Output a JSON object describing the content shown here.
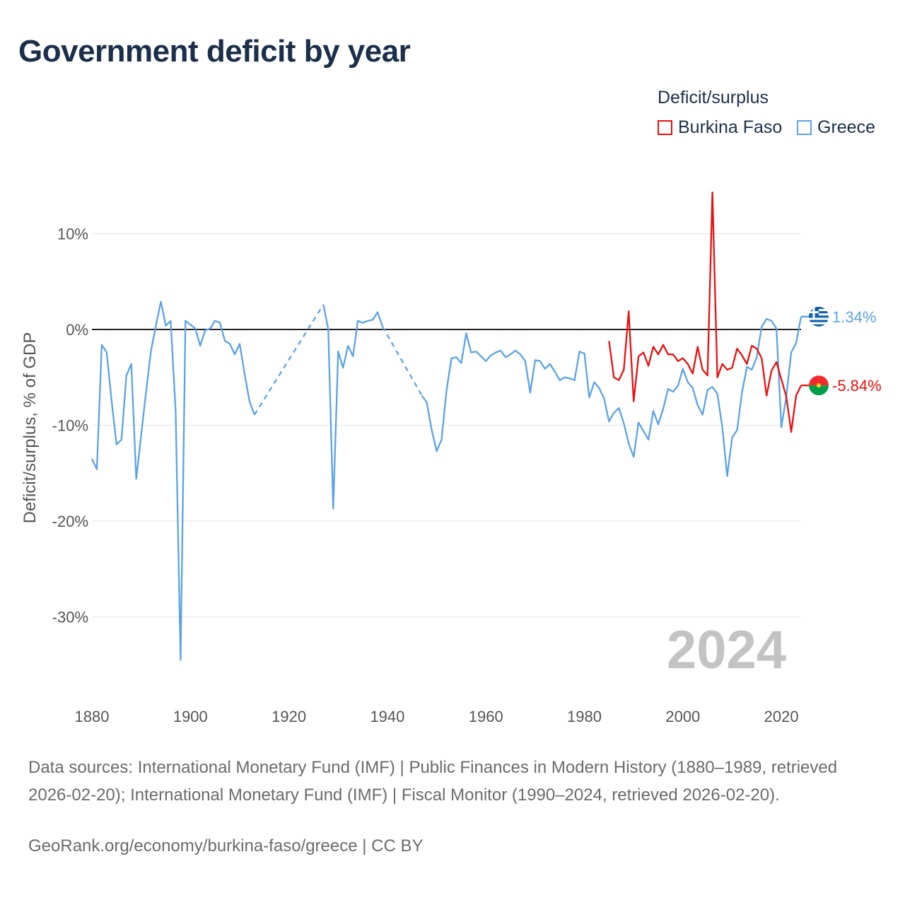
{
  "title": "Government deficit by year",
  "legend": {
    "title": "Deficit/surplus",
    "items": [
      {
        "label": "Burkina Faso",
        "color": "#e8100f"
      },
      {
        "label": "Greece",
        "color": "#5aa3e5"
      }
    ]
  },
  "chart_data": {
    "type": "line",
    "title": "Government deficit by year",
    "xlabel": "",
    "ylabel": "Deficit/surplus, % of GDP",
    "xlim": [
      1880,
      2024
    ],
    "ylim": [
      -37,
      15
    ],
    "xticks": [
      1880,
      1900,
      1920,
      1940,
      1960,
      1980,
      2000,
      2020
    ],
    "yticks": [
      10,
      0,
      -10,
      -20,
      -30
    ],
    "ytick_labels": [
      "10%",
      "0%",
      "-10%",
      "-20%",
      "-30%"
    ],
    "zero_line": true,
    "watermark_year": "2024",
    "series": [
      {
        "name": "Greece",
        "color": "#5aa3e5",
        "end_label": "1.34%",
        "flag": "greece-flag-icon",
        "segments": [
          {
            "style": "solid",
            "points": [
              [
                1880,
                -13.5
              ],
              [
                1881,
                -14.6
              ],
              [
                1882,
                -1.6
              ],
              [
                1883,
                -2.4
              ],
              [
                1884,
                -7.5
              ],
              [
                1885,
                -12.0
              ],
              [
                1886,
                -11.5
              ],
              [
                1887,
                -4.8
              ],
              [
                1888,
                -3.6
              ],
              [
                1889,
                -15.6
              ],
              [
                1890,
                -11.0
              ],
              [
                1891,
                -6.5
              ],
              [
                1892,
                -2.2
              ],
              [
                1893,
                0.4
              ],
              [
                1894,
                2.9
              ],
              [
                1895,
                0.4
              ],
              [
                1896,
                0.9
              ],
              [
                1897,
                -8.5
              ],
              [
                1898,
                -34.5
              ],
              [
                1899,
                0.9
              ],
              [
                1900,
                0.5
              ],
              [
                1901,
                0.1
              ],
              [
                1902,
                -1.7
              ],
              [
                1903,
                -0.1
              ],
              [
                1904,
                0.1
              ],
              [
                1905,
                0.9
              ],
              [
                1906,
                0.7
              ],
              [
                1907,
                -1.2
              ],
              [
                1908,
                -1.5
              ],
              [
                1909,
                -2.6
              ],
              [
                1910,
                -1.5
              ],
              [
                1911,
                -4.6
              ],
              [
                1912,
                -7.5
              ],
              [
                1913,
                -8.9
              ]
            ]
          },
          {
            "style": "dashed",
            "points": [
              [
                1913,
                -8.9
              ],
              [
                1927,
                2.6
              ]
            ]
          },
          {
            "style": "solid",
            "points": [
              [
                1927,
                2.6
              ],
              [
                1928,
                0.0
              ],
              [
                1929,
                -18.7
              ],
              [
                1930,
                -2.3
              ],
              [
                1931,
                -4.0
              ],
              [
                1932,
                -1.7
              ],
              [
                1933,
                -2.8
              ],
              [
                1934,
                0.9
              ],
              [
                1935,
                0.7
              ],
              [
                1936,
                0.9
              ],
              [
                1937,
                1.0
              ],
              [
                1938,
                1.8
              ],
              [
                1939,
                0.3
              ]
            ]
          },
          {
            "style": "dashed",
            "points": [
              [
                1939,
                0.3
              ],
              [
                1947,
                -6.9
              ]
            ]
          },
          {
            "style": "solid",
            "points": [
              [
                1947,
                -6.9
              ],
              [
                1948,
                -7.6
              ],
              [
                1949,
                -10.5
              ],
              [
                1950,
                -12.7
              ],
              [
                1951,
                -11.5
              ],
              [
                1952,
                -6.4
              ],
              [
                1953,
                -3.0
              ],
              [
                1954,
                -2.9
              ],
              [
                1955,
                -3.5
              ],
              [
                1956,
                -0.4
              ],
              [
                1957,
                -2.4
              ],
              [
                1958,
                -2.3
              ],
              [
                1959,
                -2.8
              ],
              [
                1960,
                -3.3
              ],
              [
                1961,
                -2.7
              ],
              [
                1962,
                -2.4
              ],
              [
                1963,
                -2.2
              ],
              [
                1964,
                -2.9
              ],
              [
                1965,
                -2.6
              ],
              [
                1966,
                -2.2
              ],
              [
                1967,
                -2.6
              ],
              [
                1968,
                -3.3
              ],
              [
                1969,
                -6.6
              ],
              [
                1970,
                -3.2
              ],
              [
                1971,
                -3.3
              ],
              [
                1972,
                -4.1
              ],
              [
                1973,
                -3.6
              ],
              [
                1974,
                -4.4
              ],
              [
                1975,
                -5.3
              ],
              [
                1976,
                -5.0
              ],
              [
                1977,
                -5.1
              ],
              [
                1978,
                -5.3
              ],
              [
                1979,
                -2.3
              ],
              [
                1980,
                -2.5
              ],
              [
                1981,
                -7.1
              ],
              [
                1982,
                -5.5
              ],
              [
                1983,
                -6.1
              ],
              [
                1984,
                -7.2
              ],
              [
                1985,
                -9.6
              ],
              [
                1986,
                -8.7
              ],
              [
                1987,
                -8.2
              ],
              [
                1988,
                -9.8
              ],
              [
                1989,
                -11.9
              ],
              [
                1990,
                -13.3
              ],
              [
                1991,
                -9.7
              ],
              [
                1992,
                -10.6
              ],
              [
                1993,
                -11.5
              ],
              [
                1994,
                -8.5
              ],
              [
                1995,
                -9.9
              ],
              [
                1996,
                -8.3
              ],
              [
                1997,
                -6.2
              ],
              [
                1998,
                -6.5
              ],
              [
                1999,
                -5.9
              ],
              [
                2000,
                -4.1
              ],
              [
                2001,
                -5.5
              ],
              [
                2002,
                -6.1
              ],
              [
                2003,
                -7.9
              ],
              [
                2004,
                -8.9
              ],
              [
                2005,
                -6.3
              ],
              [
                2006,
                -6.0
              ],
              [
                2007,
                -6.7
              ],
              [
                2008,
                -10.2
              ],
              [
                2009,
                -15.3
              ],
              [
                2010,
                -11.3
              ],
              [
                2011,
                -10.5
              ],
              [
                2012,
                -6.6
              ],
              [
                2013,
                -3.9
              ],
              [
                2014,
                -4.2
              ],
              [
                2015,
                -2.9
              ],
              [
                2016,
                0.3
              ],
              [
                2017,
                1.1
              ],
              [
                2018,
                0.9
              ],
              [
                2019,
                0.1
              ],
              [
                2020,
                -10.2
              ],
              [
                2021,
                -7.0
              ],
              [
                2022,
                -2.4
              ],
              [
                2023,
                -1.4
              ],
              [
                2024,
                1.34
              ]
            ]
          }
        ]
      },
      {
        "name": "Burkina Faso",
        "color": "#e8100f",
        "end_label": "-5.84%",
        "flag": "burkina-faso-flag-icon",
        "segments": [
          {
            "style": "solid",
            "points": [
              [
                1985,
                -1.2
              ],
              [
                1986,
                -5.0
              ],
              [
                1987,
                -5.3
              ],
              [
                1988,
                -4.2
              ],
              [
                1989,
                1.9
              ],
              [
                1990,
                -7.5
              ],
              [
                1991,
                -2.8
              ],
              [
                1992,
                -2.4
              ],
              [
                1993,
                -3.8
              ],
              [
                1994,
                -1.8
              ],
              [
                1995,
                -2.6
              ],
              [
                1996,
                -1.6
              ],
              [
                1997,
                -2.6
              ],
              [
                1998,
                -2.6
              ],
              [
                1999,
                -3.3
              ],
              [
                2000,
                -3.0
              ],
              [
                2001,
                -3.6
              ],
              [
                2002,
                -4.6
              ],
              [
                2003,
                -1.8
              ],
              [
                2004,
                -4.2
              ],
              [
                2005,
                -4.8
              ],
              [
                2006,
                14.3
              ],
              [
                2007,
                -5.0
              ],
              [
                2008,
                -3.6
              ],
              [
                2009,
                -4.2
              ],
              [
                2010,
                -4.0
              ],
              [
                2011,
                -2.0
              ],
              [
                2012,
                -2.7
              ],
              [
                2013,
                -3.6
              ],
              [
                2014,
                -1.7
              ],
              [
                2015,
                -2.0
              ],
              [
                2016,
                -3.0
              ],
              [
                2017,
                -6.9
              ],
              [
                2018,
                -4.3
              ],
              [
                2019,
                -3.4
              ],
              [
                2020,
                -5.2
              ],
              [
                2021,
                -7.0
              ],
              [
                2022,
                -10.7
              ],
              [
                2023,
                -6.9
              ],
              [
                2024,
                -5.84
              ]
            ]
          }
        ]
      }
    ]
  },
  "footer": {
    "sources": "Data sources: International Monetary Fund (IMF) | Public Finances in Modern History (1880–1989, retrieved 2026-02-20); International Monetary Fund (IMF) | Fiscal Monitor (1990–2024, retrieved 2026-02-20).",
    "credit": "GeoRank.org/economy/burkina-faso/greece | CC BY"
  }
}
